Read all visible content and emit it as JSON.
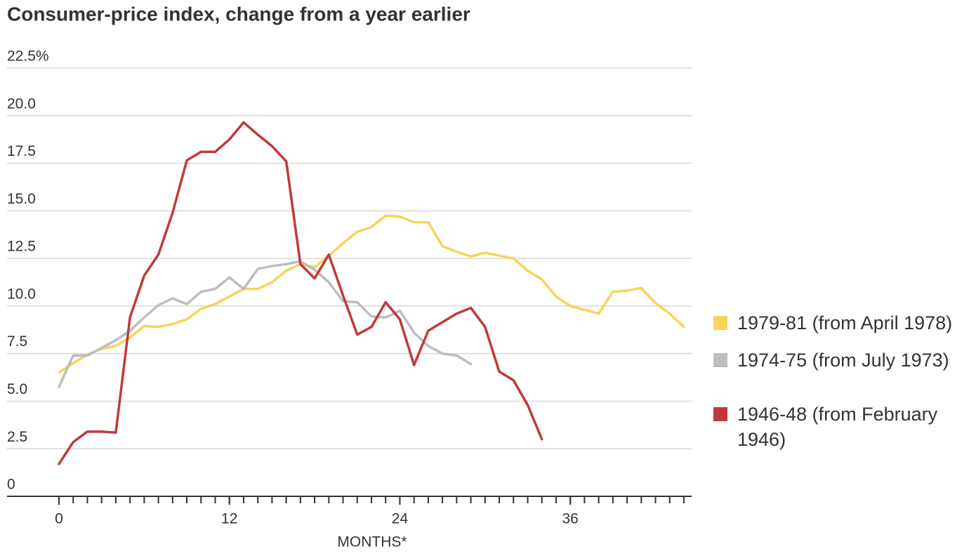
{
  "chart_data": {
    "type": "line",
    "title": "Consumer-price index, change from a year earlier",
    "xlabel": "MONTHS*",
    "xlim": [
      0,
      44
    ],
    "xticks": [
      0,
      12,
      24,
      36
    ],
    "xminorticks": [
      0,
      1,
      2,
      3,
      4,
      5,
      6,
      7,
      8,
      9,
      10,
      11,
      12,
      13,
      14,
      15,
      16,
      17,
      18,
      19,
      20,
      21,
      22,
      23,
      24,
      25,
      26,
      27,
      28,
      29,
      30,
      31,
      32,
      33,
      34,
      35,
      36,
      37,
      38,
      39,
      40,
      41,
      42,
      43,
      44
    ],
    "ylim": [
      0,
      22.5
    ],
    "yticks": [
      0,
      2.5,
      {
        "value": 5,
        "label": "5.0"
      },
      {
        "value": 7.5,
        "label": "7.5"
      },
      {
        "value": 10,
        "label": "10.0"
      },
      {
        "value": 12.5,
        "label": "12.5"
      },
      {
        "value": 15,
        "label": "15.0"
      },
      {
        "value": 17.5,
        "label": "17.5"
      },
      {
        "value": 20,
        "label": "20.0"
      },
      {
        "value": 22.5,
        "label": "22.5%"
      }
    ],
    "grid": true,
    "legend": "right",
    "series": [
      {
        "name": "1979-81 (from April 1978)",
        "color": "#f5d55a",
        "x": [
          0,
          1,
          2,
          3,
          4,
          5,
          6,
          7,
          8,
          9,
          10,
          11,
          12,
          13,
          14,
          15,
          16,
          17,
          18,
          19,
          20,
          21,
          22,
          23,
          24,
          25,
          26,
          27,
          28,
          29,
          30,
          31,
          32,
          33,
          34,
          35,
          36,
          37,
          38,
          39,
          40,
          41,
          42,
          43,
          44
        ],
        "values": [
          6.5,
          7.0,
          7.45,
          7.75,
          7.9,
          8.35,
          8.95,
          8.9,
          9.05,
          9.3,
          9.85,
          10.1,
          10.5,
          10.9,
          10.9,
          11.25,
          11.85,
          12.2,
          12.05,
          12.65,
          13.3,
          13.9,
          14.15,
          14.75,
          14.7,
          14.4,
          14.4,
          13.15,
          12.85,
          12.6,
          12.8,
          12.65,
          12.5,
          11.85,
          11.4,
          10.5,
          10.0,
          9.8,
          9.6,
          10.75,
          10.8,
          10.95,
          10.15,
          9.6,
          8.9
        ]
      },
      {
        "name": "1974-75 (from July 1973)",
        "color": "#bdbdbd",
        "x": [
          0,
          1,
          2,
          3,
          4,
          5,
          6,
          7,
          8,
          9,
          10,
          11,
          12,
          13,
          14,
          15,
          16,
          17,
          18,
          19,
          20,
          21,
          22,
          23,
          24,
          25,
          26,
          27,
          28,
          29
        ],
        "values": [
          5.75,
          7.4,
          7.4,
          7.8,
          8.2,
          8.7,
          9.4,
          10.05,
          10.4,
          10.1,
          10.75,
          10.9,
          11.5,
          10.9,
          11.95,
          12.1,
          12.2,
          12.35,
          11.9,
          11.25,
          10.25,
          10.2,
          9.45,
          9.4,
          9.75,
          8.6,
          7.9,
          7.5,
          7.4,
          6.95
        ]
      },
      {
        "name": "1946-48 (from February 1946)",
        "color": "#c0393b",
        "x": [
          0,
          1,
          2,
          3,
          4,
          5,
          6,
          7,
          8,
          9,
          10,
          11,
          12,
          13,
          14,
          15,
          16,
          17,
          18,
          19,
          20,
          21,
          22,
          23,
          24,
          25,
          26,
          27,
          28,
          29,
          30,
          31,
          32,
          33,
          34
        ],
        "values": [
          1.7,
          2.85,
          3.4,
          3.4,
          3.35,
          9.4,
          11.6,
          12.7,
          14.9,
          17.65,
          18.1,
          18.1,
          18.75,
          19.65,
          19.0,
          18.4,
          17.6,
          12.2,
          11.45,
          12.7,
          10.55,
          8.5,
          8.9,
          10.2,
          9.3,
          6.9,
          8.7,
          9.15,
          9.6,
          9.9,
          8.9,
          6.55,
          6.1,
          4.8,
          3.0
        ]
      }
    ]
  }
}
